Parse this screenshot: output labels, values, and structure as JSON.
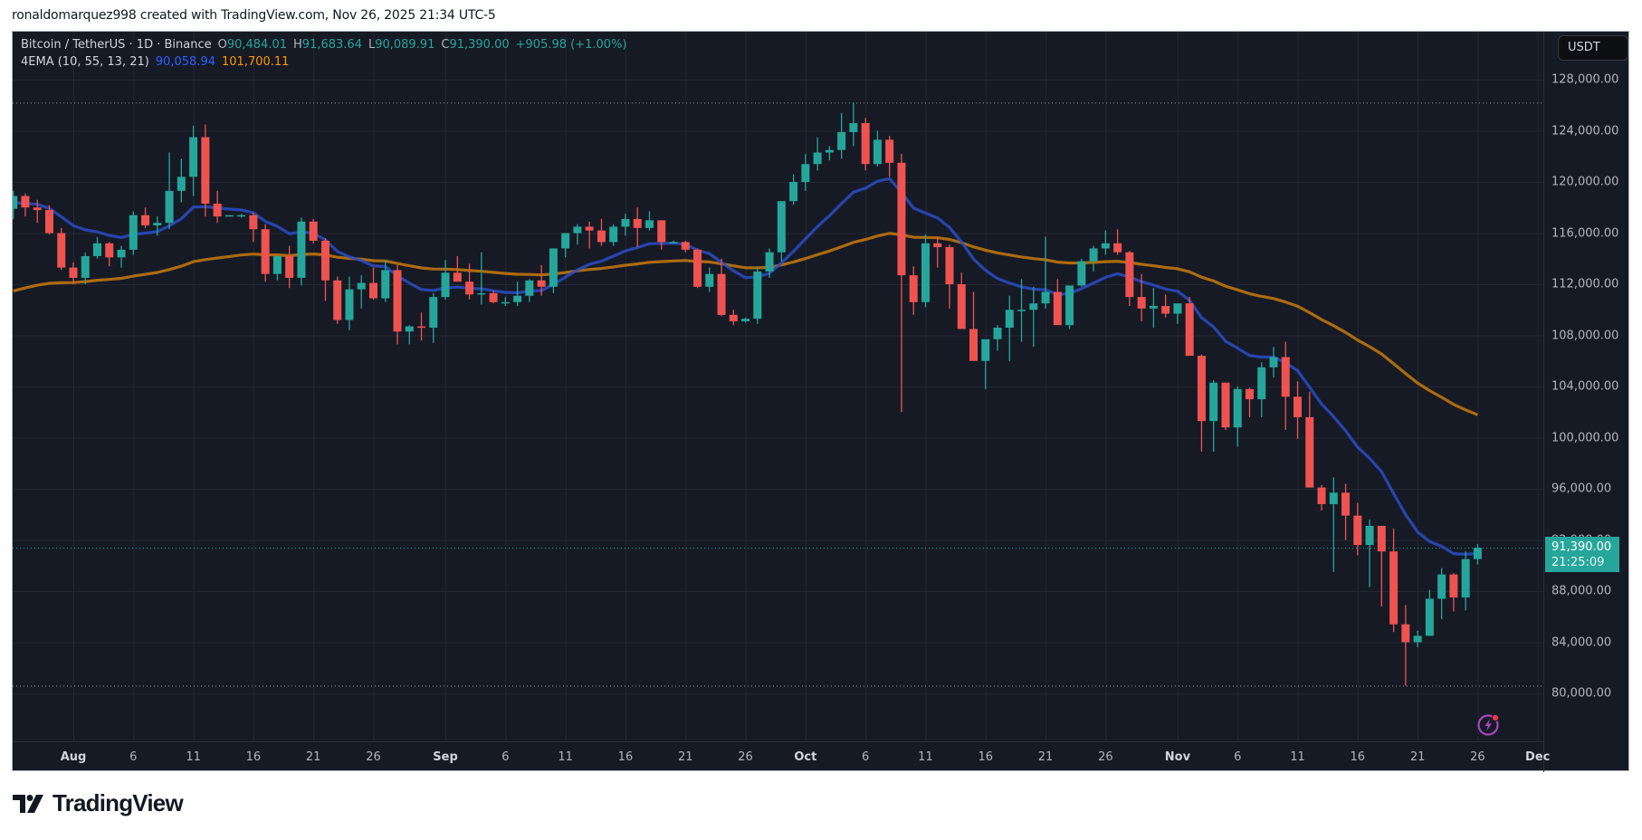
{
  "credit": "ronaldomarquez998 created with TradingView.com, Nov 26, 2025 21:34 UTC-5",
  "legend": {
    "symbol": "Bitcoin / TetherUS · 1D · Binance",
    "open_label": "O",
    "open": "90,484.01",
    "high_label": "H",
    "high": "91,683.64",
    "low_label": "L",
    "low": "90,089.91",
    "close_label": "C",
    "close": "91,390.00",
    "change": "+905.98 (+1.00%)",
    "indicator": "4EMA (10, 55, 13, 21)",
    "ema_fast": "90,058.94",
    "ema_slow": "101,700.11"
  },
  "price_axis": {
    "currency": "USDT",
    "labels": [
      "128,000.00",
      "124,000.00",
      "120,000.00",
      "116,000.00",
      "112,000.00",
      "108,000.00",
      "104,000.00",
      "100,000.00",
      "96,000.00",
      "92,000.00",
      "88,000.00",
      "84,000.00",
      "80,000.00"
    ],
    "last_price": "91,390.00",
    "countdown": "21:25:09"
  },
  "time_axis": {
    "labels": [
      {
        "text": "Aug",
        "month": true
      },
      {
        "text": "6"
      },
      {
        "text": "11"
      },
      {
        "text": "16"
      },
      {
        "text": "21"
      },
      {
        "text": "26"
      },
      {
        "text": "Sep",
        "month": true
      },
      {
        "text": "6"
      },
      {
        "text": "11"
      },
      {
        "text": "16"
      },
      {
        "text": "21"
      },
      {
        "text": "26"
      },
      {
        "text": "Oct",
        "month": true
      },
      {
        "text": "6"
      },
      {
        "text": "11"
      },
      {
        "text": "16"
      },
      {
        "text": "21"
      },
      {
        "text": "26"
      },
      {
        "text": "Nov",
        "month": true
      },
      {
        "text": "6"
      },
      {
        "text": "11"
      },
      {
        "text": "16"
      },
      {
        "text": "21"
      },
      {
        "text": "26"
      },
      {
        "text": "Dec",
        "month": true
      }
    ]
  },
  "brand": "TradingView",
  "colors": {
    "up": "#26a69a",
    "down": "#ef5350",
    "ema_fast": "#2962ff",
    "ema_slow": "#ff9800",
    "bg": "#161a25",
    "grid": "#232733"
  },
  "chart_data": {
    "type": "candlestick",
    "title": "Bitcoin / TetherUS · 1D · Binance",
    "xlabel": "",
    "ylabel": "USDT",
    "ylim": [
      76000,
      130000
    ],
    "grid": true,
    "legend_position": "top-left",
    "x_start": "2025-07-27",
    "candles_ohlc": [
      [
        117900,
        119300,
        117100,
        118900
      ],
      [
        118900,
        119100,
        117300,
        118000
      ],
      [
        118000,
        118600,
        116800,
        117800
      ],
      [
        117800,
        118200,
        115900,
        116000
      ],
      [
        116000,
        116400,
        113100,
        113300
      ],
      [
        113300,
        113700,
        112000,
        112500
      ],
      [
        112500,
        114500,
        112000,
        114200
      ],
      [
        114200,
        115700,
        114000,
        115200
      ],
      [
        115200,
        115300,
        113400,
        114100
      ],
      [
        114100,
        115000,
        113300,
        114700
      ],
      [
        114700,
        117700,
        114300,
        117400
      ],
      [
        117400,
        118000,
        116400,
        116600
      ],
      [
        116600,
        117300,
        115800,
        116800
      ],
      [
        116800,
        122300,
        116300,
        119300
      ],
      [
        119300,
        121800,
        118400,
        120400
      ],
      [
        120400,
        124400,
        118900,
        123500
      ],
      [
        123500,
        124500,
        117300,
        118300
      ],
      [
        118300,
        119300,
        116800,
        117300
      ],
      [
        117300,
        117400,
        117300,
        117400
      ],
      [
        117400,
        117500,
        117200,
        117400
      ],
      [
        117400,
        117600,
        115300,
        116300
      ],
      [
        116300,
        116700,
        112200,
        112800
      ],
      [
        112800,
        114000,
        112300,
        114200
      ],
      [
        114200,
        115000,
        111700,
        112500
      ],
      [
        112500,
        117200,
        111900,
        116900
      ],
      [
        116900,
        117100,
        115200,
        115400
      ],
      [
        115400,
        115600,
        110700,
        112300
      ],
      [
        112300,
        112600,
        108900,
        109200
      ],
      [
        109200,
        112600,
        108400,
        111600
      ],
      [
        111600,
        112700,
        110100,
        112100
      ],
      [
        112100,
        113300,
        110800,
        110900
      ],
      [
        110900,
        113900,
        110600,
        113100
      ],
      [
        113100,
        113500,
        107300,
        108300
      ],
      [
        108300,
        108800,
        107300,
        108700
      ],
      [
        108700,
        109800,
        107600,
        108600
      ],
      [
        108600,
        111300,
        107400,
        111000
      ],
      [
        111000,
        113900,
        110800,
        112900
      ],
      [
        112900,
        114200,
        112300,
        112200
      ],
      [
        112200,
        113600,
        110800,
        111200
      ],
      [
        111200,
        114500,
        110400,
        111300
      ],
      [
        111300,
        111500,
        110500,
        110600
      ],
      [
        110600,
        111000,
        110300,
        110600
      ],
      [
        110600,
        112200,
        110300,
        111100
      ],
      [
        111100,
        112400,
        110600,
        112300
      ],
      [
        112300,
        113500,
        111100,
        111800
      ],
      [
        111800,
        113800,
        111300,
        114800
      ],
      [
        114800,
        116000,
        114100,
        116000
      ],
      [
        116000,
        116700,
        115100,
        116500
      ],
      [
        116500,
        116900,
        114800,
        116200
      ],
      [
        116200,
        117100,
        115000,
        115300
      ],
      [
        115300,
        116700,
        115000,
        116500
      ],
      [
        116500,
        117500,
        115800,
        117100
      ],
      [
        117100,
        118000,
        114900,
        116400
      ],
      [
        116400,
        117700,
        116200,
        117000
      ],
      [
        117000,
        117000,
        114700,
        115300
      ],
      [
        115300,
        115400,
        115200,
        115300
      ],
      [
        115300,
        115400,
        114500,
        114700
      ],
      [
        114700,
        114800,
        111700,
        111800
      ],
      [
        111800,
        113300,
        111400,
        112800
      ],
      [
        112800,
        114000,
        109500,
        109600
      ],
      [
        109600,
        110000,
        108800,
        109100
      ],
      [
        109100,
        109400,
        109000,
        109300
      ],
      [
        109300,
        113400,
        108900,
        113000
      ],
      [
        113000,
        114800,
        112500,
        114500
      ],
      [
        114500,
        118500,
        113800,
        118500
      ],
      [
        118500,
        120600,
        118200,
        120000
      ],
      [
        120000,
        122200,
        119300,
        121400
      ],
      [
        121400,
        123500,
        120900,
        122300
      ],
      [
        122300,
        122800,
        121700,
        122500
      ],
      [
        122500,
        125400,
        121800,
        123900
      ],
      [
        123900,
        126200,
        122800,
        124600
      ],
      [
        124600,
        125000,
        120900,
        121400
      ],
      [
        121400,
        124000,
        121200,
        123300
      ],
      [
        123300,
        123600,
        120400,
        121500
      ],
      [
        121500,
        122200,
        102000,
        112700
      ],
      [
        112700,
        113400,
        109600,
        110600
      ],
      [
        110600,
        115900,
        110200,
        115200
      ],
      [
        115200,
        115700,
        113300,
        114900
      ],
      [
        114900,
        115100,
        110100,
        112000
      ],
      [
        112000,
        112900,
        108600,
        108500
      ],
      [
        108500,
        111400,
        106500,
        106000
      ],
      [
        106000,
        107600,
        103800,
        107700
      ],
      [
        107700,
        108800,
        106800,
        108600
      ],
      [
        108600,
        111100,
        106000,
        110000
      ],
      [
        110000,
        112400,
        107500,
        110000
      ],
      [
        110000,
        111800,
        107100,
        110500
      ],
      [
        110500,
        115700,
        110100,
        111400
      ],
      [
        111400,
        112400,
        109900,
        108800
      ],
      [
        108800,
        111600,
        108500,
        111900
      ],
      [
        111900,
        114000,
        111800,
        113800
      ],
      [
        113800,
        115000,
        113000,
        114800
      ],
      [
        114800,
        116200,
        114300,
        115200
      ],
      [
        115200,
        116300,
        114300,
        114500
      ],
      [
        114500,
        114600,
        110300,
        111000
      ],
      [
        111000,
        112800,
        109100,
        110100
      ],
      [
        110100,
        111700,
        108600,
        110300
      ],
      [
        110300,
        111200,
        109400,
        109700
      ],
      [
        109700,
        110500,
        108900,
        110500
      ],
      [
        110500,
        111000,
        106600,
        106400
      ],
      [
        106400,
        106500,
        98900,
        101300
      ],
      [
        101300,
        104500,
        98900,
        104300
      ],
      [
        104300,
        104300,
        100600,
        100800
      ],
      [
        100800,
        104000,
        99300,
        103800
      ],
      [
        103800,
        103900,
        101600,
        103000
      ],
      [
        103000,
        105900,
        101600,
        105500
      ],
      [
        105500,
        107100,
        104700,
        106300
      ],
      [
        106300,
        107500,
        100600,
        103200
      ],
      [
        103200,
        104400,
        99900,
        101600
      ],
      [
        101600,
        103600,
        96200,
        96100
      ],
      [
        96100,
        96300,
        94300,
        94800
      ],
      [
        94800,
        96900,
        89500,
        95700
      ],
      [
        95700,
        96400,
        92000,
        93900
      ],
      [
        93900,
        94900,
        90800,
        91600
      ],
      [
        91600,
        93600,
        88300,
        93100
      ],
      [
        93100,
        93100,
        86800,
        91100
      ],
      [
        91100,
        92900,
        84800,
        85400
      ],
      [
        85400,
        86900,
        80600,
        84000
      ],
      [
        84000,
        84900,
        83600,
        84500
      ],
      [
        84500,
        88100,
        84500,
        87400
      ],
      [
        87400,
        89800,
        85800,
        89300
      ],
      [
        89300,
        89400,
        86400,
        87500
      ],
      [
        87500,
        91100,
        86500,
        90500
      ],
      [
        90500,
        91680,
        90090,
        91390
      ]
    ],
    "ema_fast_series": {
      "name": "EMA 13",
      "last": 90058.94
    },
    "ema_slow_series": {
      "name": "EMA 55",
      "last": 101700.11
    },
    "reference_lines": {
      "high": 126200,
      "low": 80600,
      "last": 91390
    }
  }
}
